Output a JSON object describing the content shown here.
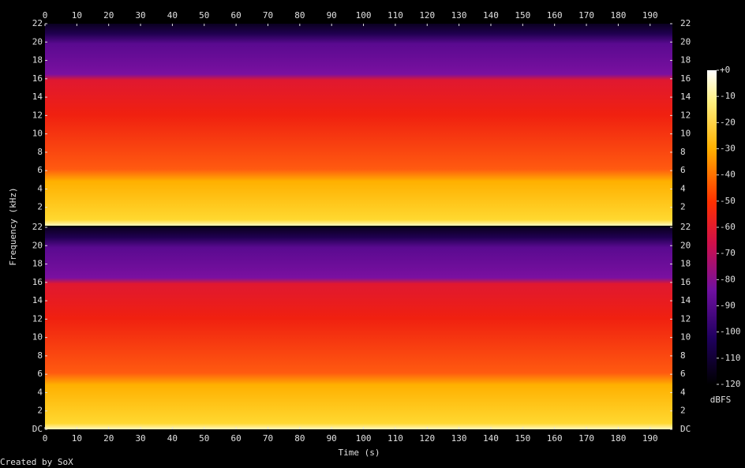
{
  "chart_data": [
    {
      "type": "spectrogram",
      "xlim": [
        0,
        197
      ],
      "xticks": [
        0,
        10,
        20,
        30,
        40,
        50,
        60,
        70,
        80,
        90,
        100,
        110,
        120,
        130,
        140,
        150,
        160,
        170,
        180,
        190
      ],
      "ylim": [
        0,
        22
      ],
      "yticks": [
        2,
        4,
        6,
        8,
        10,
        12,
        14,
        16,
        18,
        20,
        22
      ]
    },
    {
      "type": "spectrogram",
      "xlabel": "Time (s)",
      "xlim": [
        0,
        197
      ],
      "xticks": [
        0,
        10,
        20,
        30,
        40,
        50,
        60,
        70,
        80,
        90,
        100,
        110,
        120,
        130,
        140,
        150,
        160,
        170,
        180,
        190
      ],
      "ylim": [
        0,
        22
      ],
      "yticks": [
        {
          "value": 0,
          "label": "DC"
        },
        2,
        4,
        6,
        8,
        10,
        12,
        14,
        16,
        18,
        20,
        22
      ]
    }
  ],
  "ylabel": "Frequency (kHz)",
  "colorbar": {
    "label": "dBFS",
    "lim": [
      -120,
      0
    ],
    "ticks": [
      {
        "value": 0,
        "label": "+0"
      },
      -10,
      -20,
      -30,
      -40,
      -50,
      -60,
      -70,
      -80,
      -90,
      -100,
      -110,
      -120
    ]
  },
  "footer": "Created by SoX"
}
